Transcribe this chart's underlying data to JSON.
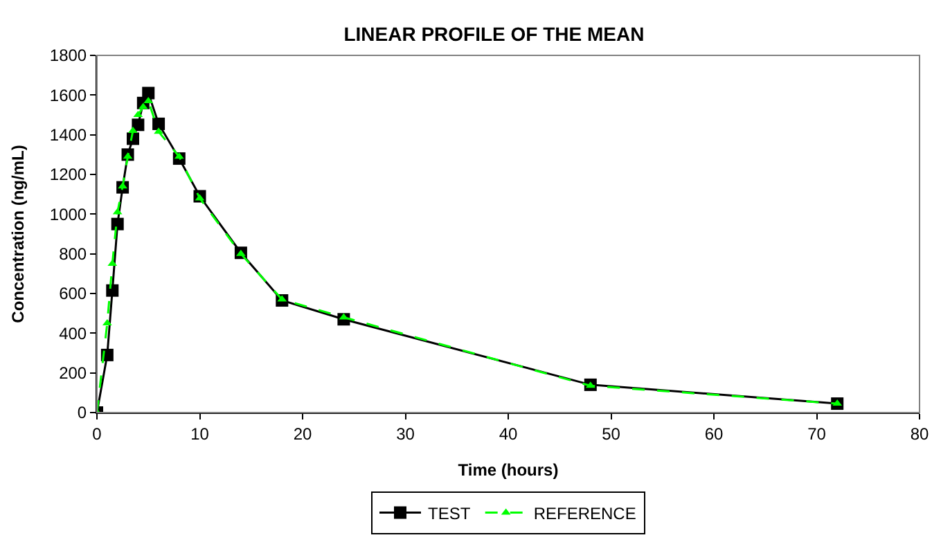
{
  "chart_data": {
    "type": "line",
    "title": "LINEAR PROFILE OF THE MEAN",
    "xlabel": "Time (hours)",
    "ylabel": "Concentration (ng/mL)",
    "x": [
      0,
      1,
      1.5,
      2,
      2.5,
      3,
      3.5,
      4,
      4.5,
      5,
      6,
      8,
      10,
      14,
      18,
      24,
      48,
      72
    ],
    "series": [
      {
        "name": "TEST",
        "color": "#000000",
        "marker": "square",
        "line_style": "solid",
        "values": [
          0,
          290,
          615,
          950,
          1135,
          1300,
          1380,
          1450,
          1560,
          1610,
          1455,
          1280,
          1090,
          805,
          565,
          470,
          140,
          45
        ]
      },
      {
        "name": "REFERENCE",
        "color": "#00ff00",
        "marker": "triangle",
        "line_style": "dashed",
        "values": [
          0,
          450,
          750,
          1010,
          1140,
          1290,
          1420,
          1500,
          1540,
          1570,
          1415,
          1290,
          1080,
          800,
          570,
          480,
          135,
          45
        ]
      }
    ],
    "xlim": [
      0,
      80
    ],
    "xticks": [
      0,
      10,
      20,
      30,
      40,
      50,
      60,
      70,
      80
    ],
    "ylim": [
      0,
      1800
    ],
    "yticks": [
      0,
      200,
      400,
      600,
      800,
      1000,
      1200,
      1400,
      1600,
      1800
    ],
    "legend": "bottom"
  }
}
